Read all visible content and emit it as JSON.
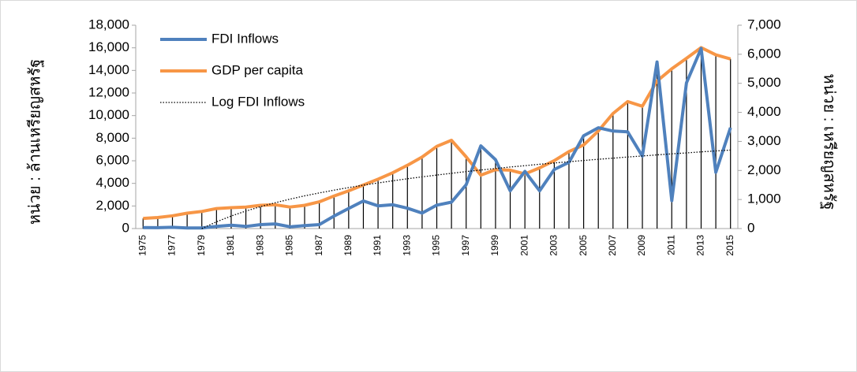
{
  "chart_data": {
    "type": "line",
    "y_label": "หน่วย : ล้านเหรียญสหรัฐ",
    "y2_label": "หน่วย : เหรียญสหรัฐ",
    "categories": [
      "1975",
      null,
      "1977",
      null,
      "1979",
      null,
      "1981",
      null,
      "1983",
      null,
      "1985",
      null,
      "1987",
      null,
      "1989",
      null,
      "1991",
      null,
      "1993",
      null,
      "1995",
      null,
      "1997",
      null,
      "1999",
      null,
      "2001",
      null,
      "2003",
      null,
      "2005",
      null,
      "2007",
      null,
      "2009",
      null,
      "2011",
      null,
      "2013",
      null,
      "2015"
    ],
    "series": [
      {
        "name": "FDI Inflows",
        "color": "#4f81bd",
        "style": "solid",
        "axis": "y",
        "values": [
          90,
          80,
          110,
          50,
          55,
          190,
          290,
          190,
          350,
          410,
          160,
          260,
          350,
          1100,
          1780,
          2440,
          2010,
          2110,
          1800,
          1370,
          2070,
          2340,
          3880,
          7320,
          6100,
          3350,
          5060,
          3340,
          5230,
          5860,
          8220,
          8920,
          8630,
          8560,
          6410,
          14750,
          2470,
          12900,
          15940,
          4980,
          8930
        ]
      },
      {
        "name": "GDP per capita",
        "color": "#f79646",
        "style": "solid",
        "axis": "y2",
        "values": [
          350,
          380,
          440,
          530,
          590,
          690,
          720,
          740,
          800,
          820,
          740,
          800,
          920,
          1120,
          1300,
          1500,
          1700,
          1920,
          2180,
          2460,
          2830,
          3040,
          2470,
          1840,
          2030,
          2010,
          1880,
          2090,
          2340,
          2650,
          2880,
          3360,
          3960,
          4370,
          4210,
          5080,
          5500,
          5860,
          6230,
          5980,
          5840
        ]
      },
      {
        "name": "Log FDI Inflows",
        "color": "#000000",
        "style": "dotted",
        "axis": "y",
        "values": [
          null,
          null,
          null,
          null,
          0,
          602,
          1111,
          1552,
          1941,
          2289,
          2604,
          2892,
          3156,
          3401,
          3629,
          3842,
          4042,
          4231,
          4409,
          4579,
          4740,
          4894,
          5041,
          5181,
          5316,
          5446,
          5570,
          5690,
          5806,
          5918,
          6027,
          6131,
          6233,
          6332,
          6427,
          6520,
          6611,
          6699,
          6785,
          6869,
          6950
        ]
      }
    ],
    "drop_lines": true,
    "ylim": [
      0,
      18000
    ],
    "yticks": [
      0,
      {
        "value": 2000,
        "label": "2,000"
      },
      {
        "value": 4000,
        "label": "4,000"
      },
      {
        "value": 6000,
        "label": "6,000"
      },
      {
        "value": 8000,
        "label": "8,000"
      },
      {
        "value": 10000,
        "label": "10,000"
      },
      {
        "value": 12000,
        "label": "12,000"
      },
      {
        "value": 14000,
        "label": "14,000"
      },
      {
        "value": 16000,
        "label": "16,000"
      },
      {
        "value": 18000,
        "label": "18,000"
      }
    ],
    "y2lim": [
      0,
      7000
    ],
    "y2ticks": [
      0,
      {
        "value": 1000,
        "label": "1,000"
      },
      {
        "value": 2000,
        "label": "2,000"
      },
      {
        "value": 3000,
        "label": "3,000"
      },
      {
        "value": 4000,
        "label": "4,000"
      },
      {
        "value": 5000,
        "label": "5,000"
      },
      {
        "value": 6000,
        "label": "6,000"
      },
      {
        "value": 7000,
        "label": "7,000"
      }
    ],
    "legend": "upper left"
  }
}
